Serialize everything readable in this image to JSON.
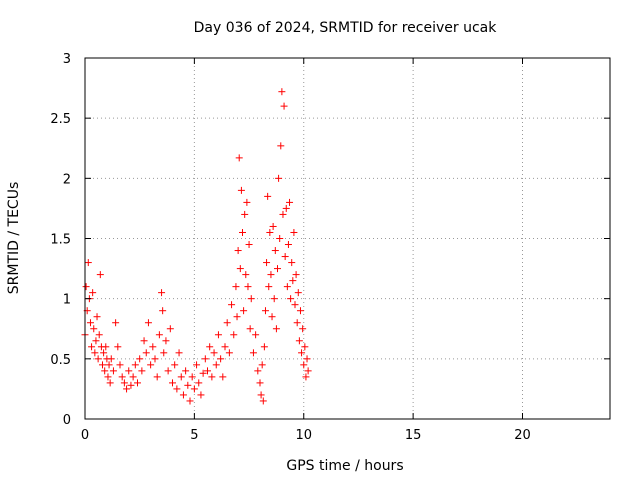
{
  "chart_data": {
    "type": "scatter",
    "title": "Day 036 of 2024, SRMTID for receiver ucak",
    "xlabel": "GPS time / hours",
    "ylabel": "SRMTID / TECUs",
    "xlim": [
      0,
      24
    ],
    "ylim": [
      0,
      3
    ],
    "x_ticks": [
      0,
      5,
      10,
      15,
      20
    ],
    "x_tick_labels": [
      "0",
      "5",
      "10",
      "15",
      "20"
    ],
    "y_ticks": [
      0,
      0.5,
      1,
      1.5,
      2,
      2.5,
      3
    ],
    "y_tick_labels": [
      "0",
      "0.5",
      "1",
      "1.5",
      "2",
      "2.5",
      "3"
    ],
    "grid": true,
    "marker": "+",
    "color": "#ff0000",
    "series": [
      {
        "name": "SRMTID",
        "x": [
          0.0,
          0.05,
          0.1,
          0.15,
          0.2,
          0.25,
          0.3,
          0.35,
          0.4,
          0.45,
          0.5,
          0.55,
          0.6,
          0.65,
          0.7,
          0.75,
          0.8,
          0.85,
          0.9,
          0.95,
          1.0,
          1.05,
          1.1,
          1.15,
          1.2,
          1.3,
          1.4,
          1.5,
          1.6,
          1.7,
          1.8,
          1.9,
          2.0,
          2.1,
          2.2,
          2.3,
          2.4,
          2.5,
          2.6,
          2.7,
          2.8,
          2.9,
          3.0,
          3.1,
          3.2,
          3.3,
          3.4,
          3.5,
          3.55,
          3.6,
          3.7,
          3.8,
          3.9,
          4.0,
          4.1,
          4.2,
          4.3,
          4.4,
          4.5,
          4.6,
          4.7,
          4.8,
          4.9,
          5.0,
          5.1,
          5.2,
          5.3,
          5.4,
          5.5,
          5.6,
          5.7,
          5.8,
          5.9,
          6.0,
          6.1,
          6.2,
          6.3,
          6.4,
          6.5,
          6.6,
          6.7,
          6.8,
          6.9,
          6.95,
          7.0,
          7.05,
          7.1,
          7.15,
          7.2,
          7.25,
          7.3,
          7.35,
          7.4,
          7.45,
          7.5,
          7.55,
          7.6,
          7.7,
          7.8,
          7.9,
          8.0,
          8.05,
          8.1,
          8.15,
          8.2,
          8.25,
          8.3,
          8.35,
          8.4,
          8.45,
          8.5,
          8.55,
          8.6,
          8.65,
          8.7,
          8.75,
          8.8,
          8.85,
          8.9,
          8.95,
          9.0,
          9.05,
          9.1,
          9.15,
          9.2,
          9.25,
          9.3,
          9.35,
          9.4,
          9.45,
          9.5,
          9.55,
          9.6,
          9.65,
          9.7,
          9.75,
          9.8,
          9.85,
          9.9,
          9.95,
          10.0,
          10.05,
          10.1,
          10.15,
          10.2
        ],
        "y": [
          0.7,
          1.1,
          0.9,
          1.3,
          1.0,
          0.8,
          0.6,
          1.05,
          0.75,
          0.55,
          0.65,
          0.85,
          0.5,
          0.7,
          1.2,
          0.6,
          0.45,
          0.55,
          0.4,
          0.6,
          0.5,
          0.35,
          0.45,
          0.3,
          0.5,
          0.4,
          0.8,
          0.6,
          0.45,
          0.35,
          0.3,
          0.25,
          0.4,
          0.28,
          0.35,
          0.45,
          0.3,
          0.5,
          0.4,
          0.65,
          0.55,
          0.8,
          0.45,
          0.6,
          0.5,
          0.35,
          0.7,
          1.05,
          0.9,
          0.55,
          0.65,
          0.4,
          0.75,
          0.3,
          0.45,
          0.25,
          0.55,
          0.35,
          0.2,
          0.4,
          0.28,
          0.15,
          0.35,
          0.25,
          0.45,
          0.3,
          0.2,
          0.38,
          0.5,
          0.4,
          0.6,
          0.35,
          0.55,
          0.45,
          0.7,
          0.5,
          0.35,
          0.6,
          0.8,
          0.55,
          0.95,
          0.7,
          1.1,
          0.85,
          1.4,
          2.17,
          1.25,
          1.9,
          1.55,
          0.9,
          1.7,
          1.2,
          1.8,
          1.1,
          1.45,
          0.75,
          1.0,
          0.55,
          0.7,
          0.4,
          0.3,
          0.2,
          0.45,
          0.15,
          0.6,
          0.9,
          1.3,
          1.85,
          1.1,
          1.55,
          1.2,
          0.85,
          1.6,
          1.0,
          1.4,
          0.75,
          1.25,
          2.0,
          1.5,
          2.27,
          2.72,
          1.7,
          2.6,
          1.35,
          1.75,
          1.1,
          1.45,
          1.8,
          1.0,
          1.3,
          1.15,
          1.55,
          0.95,
          1.2,
          0.8,
          1.05,
          0.65,
          0.9,
          0.55,
          0.75,
          0.45,
          0.6,
          0.35,
          0.5,
          0.4
        ]
      }
    ]
  }
}
